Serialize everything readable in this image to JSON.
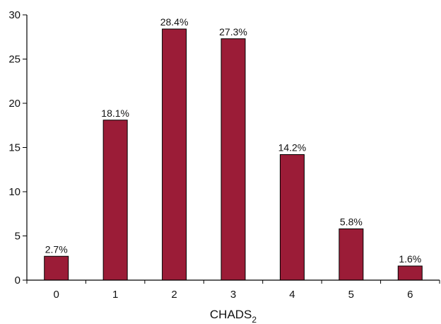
{
  "chart_data": {
    "type": "bar",
    "title": "",
    "xlabel": "CHADS",
    "xlabel_subscript": "2",
    "ylabel": "",
    "categories": [
      "0",
      "1",
      "2",
      "3",
      "4",
      "5",
      "6"
    ],
    "values": [
      2.7,
      18.1,
      28.4,
      27.3,
      14.2,
      5.8,
      1.6
    ],
    "data_labels": [
      "2.7%",
      "18.1%",
      "28.4%",
      "27.3%",
      "14.2%",
      "5.8%",
      "1.6%"
    ],
    "ylim": [
      0,
      30
    ],
    "yticks": [
      0,
      5,
      10,
      15,
      20,
      25,
      30
    ],
    "grid": false,
    "legend": "none",
    "colors": {
      "bar_fill": "#9b1c37",
      "bar_stroke": "#000000",
      "axis": "#000000"
    }
  }
}
